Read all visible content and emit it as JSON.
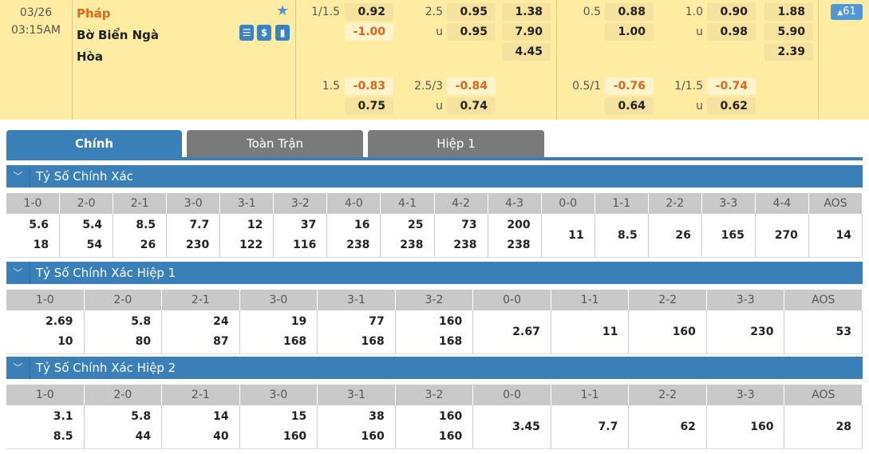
{
  "match": {
    "date": "03/26",
    "time": "03:15AM",
    "home": "Pháp",
    "away": "Bờ Biển Ngà",
    "draw": "Hòa",
    "badge": "61",
    "icons": [
      "live-icon",
      "dollar-icon",
      "stats-icon"
    ]
  },
  "odds": {
    "g1": {
      "hcap": "1/1.5",
      "h1": "0.92",
      "h2": "-1.00",
      "ou": "2.5",
      "o1": "0.95",
      "u": "u",
      "o2": "0.95",
      "x1": "1.38",
      "x2": "7.90",
      "x3": "4.45",
      "b_hcap": "1.5",
      "b1": "-0.83",
      "b2": "0.75",
      "b_ou": "2.5/3",
      "bo1": "-0.84",
      "bu": "u",
      "bo2": "0.74"
    },
    "g2": {
      "hcap": "0.5",
      "h1": "0.88",
      "h2": "1.00",
      "ou": "1.0",
      "o1": "0.90",
      "u": "u",
      "o2": "0.98",
      "x1": "1.88",
      "x2": "5.90",
      "x3": "2.39",
      "b_hcap": "0.5/1",
      "b1": "-0.76",
      "b2": "0.64",
      "b_ou": "1/1.5",
      "bo1": "-0.74",
      "bu": "u",
      "bo2": "0.62"
    }
  },
  "colors": {
    "accent": "#3a7fb8",
    "highlight": "#feeca3",
    "negative": "#e0661c"
  },
  "tabs": [
    "Chính",
    "Toàn Trận",
    "Hiệp 1"
  ],
  "sections": [
    {
      "title": "Tỷ Số Chính Xác",
      "headers": [
        "1-0",
        "2-0",
        "2-1",
        "3-0",
        "3-1",
        "3-2",
        "4-0",
        "4-1",
        "4-2",
        "4-3",
        "0-0",
        "1-1",
        "2-2",
        "3-3",
        "4-4",
        "AOS"
      ],
      "values": [
        [
          "5.6",
          "18"
        ],
        [
          "5.4",
          "54"
        ],
        [
          "8.5",
          "26"
        ],
        [
          "7.7",
          "230"
        ],
        [
          "12",
          "122"
        ],
        [
          "37",
          "116"
        ],
        [
          "16",
          "238"
        ],
        [
          "25",
          "238"
        ],
        [
          "73",
          "238"
        ],
        [
          "200",
          "238"
        ],
        [
          "11"
        ],
        [
          "8.5"
        ],
        [
          "26"
        ],
        [
          "165"
        ],
        [
          "270"
        ],
        [
          "14"
        ]
      ]
    },
    {
      "title": "Tỷ Số Chính Xác Hiệp 1",
      "headers": [
        "1-0",
        "2-0",
        "2-1",
        "3-0",
        "3-1",
        "3-2",
        "0-0",
        "1-1",
        "2-2",
        "3-3",
        "AOS"
      ],
      "values": [
        [
          "2.69",
          "10"
        ],
        [
          "5.8",
          "80"
        ],
        [
          "24",
          "87"
        ],
        [
          "19",
          "168"
        ],
        [
          "77",
          "168"
        ],
        [
          "160",
          "168"
        ],
        [
          "2.67"
        ],
        [
          "11"
        ],
        [
          "160"
        ],
        [
          "230"
        ],
        [
          "53"
        ]
      ]
    },
    {
      "title": "Tỷ Số Chính Xác Hiệp 2",
      "headers": [
        "1-0",
        "2-0",
        "2-1",
        "3-0",
        "3-1",
        "3-2",
        "0-0",
        "1-1",
        "2-2",
        "3-3",
        "AOS"
      ],
      "values": [
        [
          "3.1",
          "8.5"
        ],
        [
          "5.8",
          "44"
        ],
        [
          "14",
          "40"
        ],
        [
          "15",
          "160"
        ],
        [
          "38",
          "160"
        ],
        [
          "160",
          "160"
        ],
        [
          "3.45"
        ],
        [
          "7.7"
        ],
        [
          "62"
        ],
        [
          "160"
        ],
        [
          "28"
        ]
      ]
    }
  ]
}
